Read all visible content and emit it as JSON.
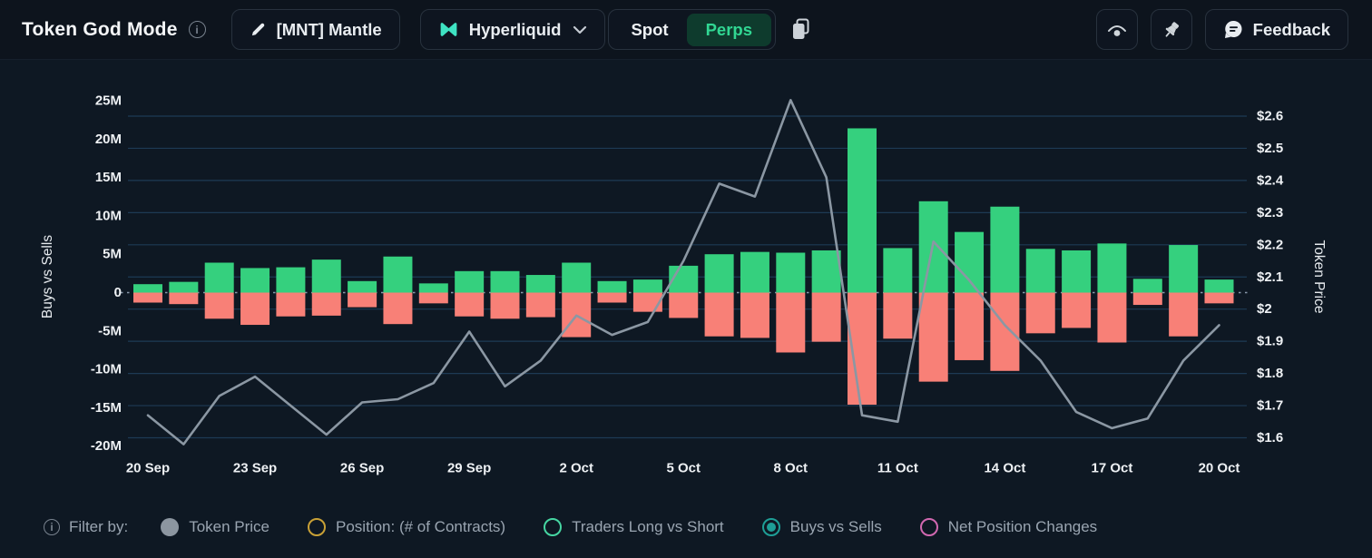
{
  "header": {
    "title": "Token God Mode",
    "token_button": {
      "label": "[MNT] Mantle"
    },
    "exchange_dropdown": {
      "label": "Hyperliquid"
    },
    "market_toggle": {
      "spot_label": "Spot",
      "perps_label": "Perps",
      "active": "Perps"
    },
    "feedback_button": {
      "label": "Feedback"
    }
  },
  "colors": {
    "buys_green": "#35d07e",
    "sells_red": "#f88077",
    "price_line": "#8b97a3",
    "grid": "#1d3a54",
    "zero_dotted": "#8a9aac",
    "tick_text": "#eef1f4",
    "perps_active_bg": "#0e3b2d",
    "perps_active_text": "#31d793",
    "hyperliquid_logo": "#3fe3c3"
  },
  "chart_data": {
    "type": "bar",
    "title": "Buys vs Sells with Token Price overlay",
    "left_axis": {
      "title": "Buys vs Sells",
      "tick_labels": [
        "25M",
        "20M",
        "15M",
        "10M",
        "5M",
        "0",
        "-5M",
        "-10M",
        "-15M",
        "-20M"
      ],
      "tick_values": [
        25,
        20,
        15,
        10,
        5,
        0,
        -5,
        -10,
        -15,
        -20
      ],
      "unit": "M"
    },
    "right_axis": {
      "title": "Token Price",
      "tick_labels": [
        "$2.6",
        "$2.5",
        "$2.4",
        "$2.3",
        "$2.2",
        "$2.1",
        "$2",
        "$1.9",
        "$1.8",
        "$1.7",
        "$1.6"
      ],
      "tick_values": [
        2.6,
        2.5,
        2.4,
        2.3,
        2.2,
        2.1,
        2.0,
        1.9,
        1.8,
        1.7,
        1.6
      ],
      "unit": "$"
    },
    "x_axis": {
      "tick_labels": [
        "20 Sep",
        "23 Sep",
        "26 Sep",
        "29 Sep",
        "2 Oct",
        "5 Oct",
        "8 Oct",
        "11 Oct",
        "14 Oct",
        "17 Oct",
        "20 Oct"
      ],
      "tick_day_indices": [
        0,
        3,
        6,
        9,
        12,
        15,
        18,
        21,
        24,
        27,
        30
      ]
    },
    "categories": [
      "20 Sep",
      "21 Sep",
      "22 Sep",
      "23 Sep",
      "24 Sep",
      "25 Sep",
      "26 Sep",
      "27 Sep",
      "28 Sep",
      "29 Sep",
      "30 Sep",
      "1 Oct",
      "2 Oct",
      "3 Oct",
      "4 Oct",
      "5 Oct",
      "6 Oct",
      "7 Oct",
      "8 Oct",
      "9 Oct",
      "10 Oct",
      "11 Oct",
      "12 Oct",
      "13 Oct",
      "14 Oct",
      "15 Oct",
      "16 Oct",
      "17 Oct",
      "18 Oct",
      "19 Oct",
      "20 Oct"
    ],
    "series": [
      {
        "name": "Buys (M)",
        "kind": "bar",
        "values": [
          1.1,
          1.4,
          3.9,
          3.2,
          3.3,
          4.3,
          1.5,
          4.7,
          1.2,
          2.8,
          2.8,
          2.3,
          3.9,
          1.5,
          1.7,
          3.5,
          5.0,
          5.3,
          5.2,
          5.5,
          21.4,
          5.8,
          11.9,
          7.9,
          11.2,
          5.7,
          5.5,
          6.4,
          1.8,
          6.2,
          1.7
        ]
      },
      {
        "name": "Sells (M)",
        "kind": "bar",
        "values": [
          -1.3,
          -1.5,
          -3.4,
          -4.2,
          -3.1,
          -3.0,
          -1.9,
          -4.1,
          -1.4,
          -3.1,
          -3.4,
          -3.2,
          -5.8,
          -1.3,
          -2.5,
          -3.3,
          -5.7,
          -5.9,
          -7.8,
          -6.4,
          -14.6,
          -6.0,
          -11.6,
          -8.8,
          -10.2,
          -5.3,
          -4.6,
          -6.5,
          -1.6,
          -5.7,
          -1.4
        ]
      },
      {
        "name": "Token Price ($)",
        "kind": "line",
        "values": [
          1.67,
          1.58,
          1.73,
          1.79,
          1.7,
          1.61,
          1.71,
          1.72,
          1.77,
          1.93,
          1.76,
          1.84,
          1.98,
          1.92,
          1.96,
          2.15,
          2.39,
          2.35,
          2.65,
          2.41,
          1.67,
          1.65,
          2.21,
          2.09,
          1.95,
          1.84,
          1.68,
          1.63,
          1.66,
          1.84,
          1.95
        ]
      }
    ],
    "grid": true,
    "legend_position": "none"
  },
  "legend": {
    "filter_label": "Filter by:",
    "options": [
      {
        "label": "Token Price",
        "style": "filled",
        "color": "#8c96a0",
        "selected": false
      },
      {
        "label": "Position: (# of Contracts)",
        "style": "ring",
        "color": "#c9a136",
        "selected": false
      },
      {
        "label": "Traders Long vs Short",
        "style": "ring",
        "color": "#46d6a2",
        "selected": false
      },
      {
        "label": "Buys vs Sells",
        "style": "dot",
        "color": "#1e9e96",
        "selected": true
      },
      {
        "label": "Net Position Changes",
        "style": "ring",
        "color": "#d168b0",
        "selected": false
      }
    ]
  }
}
